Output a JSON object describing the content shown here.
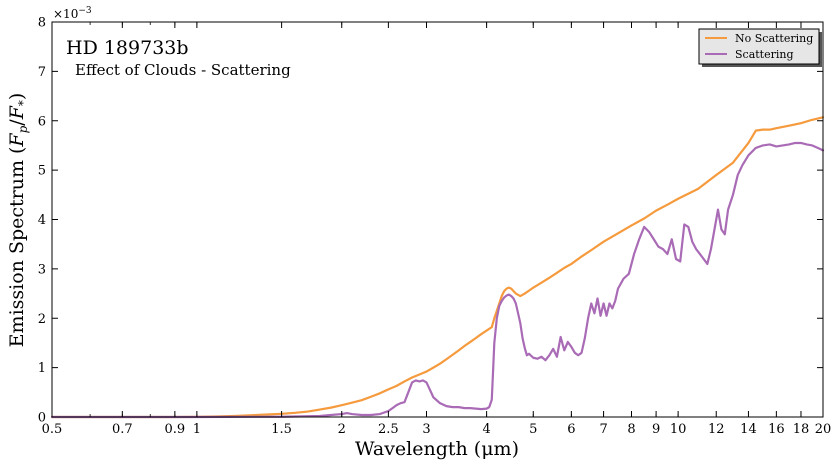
{
  "chart_data": {
    "type": "line",
    "title": "HD 189733b",
    "subtitle": "Effect of Clouds - Scattering",
    "xlabel": "Wavelength (μm)",
    "ylabel": "Emission Spectrum (F_p/F_*)",
    "ylabel_parts": {
      "prefix": "Emission Spectrum (",
      "F": "F",
      "p": "p",
      "slash": "/",
      "F2": "F",
      "star": "*",
      "suffix": ")"
    },
    "x_scale": "log",
    "xlim": [
      0.5,
      20
    ],
    "ylim": [
      0,
      8
    ],
    "y_multiplier": "×10",
    "y_multiplier_exp": "−3",
    "x_tick_values": [
      0.5,
      0.7,
      0.9,
      1,
      1.5,
      2,
      2.5,
      3,
      4,
      5,
      6,
      7,
      8,
      9,
      10,
      12,
      14,
      16,
      18,
      20
    ],
    "x_tick_labels": [
      "0.5",
      "0.7",
      "0.9",
      "1",
      "1.5",
      "2",
      "2.5",
      "3",
      "4",
      "5",
      "6",
      "7",
      "8",
      "9",
      "10",
      "12",
      "14",
      "16",
      "18",
      "20"
    ],
    "y_tick_values": [
      0,
      1,
      2,
      3,
      4,
      5,
      6,
      7,
      8
    ],
    "y_tick_labels": [
      "0",
      "1",
      "2",
      "3",
      "4",
      "5",
      "6",
      "7",
      "8"
    ],
    "legend_position": "top-right",
    "grid": false,
    "series": [
      {
        "name": "No Scattering",
        "color": "#f59a3d",
        "x": [
          0.5,
          0.7,
          0.9,
          1.0,
          1.1,
          1.2,
          1.3,
          1.4,
          1.5,
          1.6,
          1.7,
          1.8,
          1.9,
          2.0,
          2.1,
          2.2,
          2.3,
          2.4,
          2.5,
          2.6,
          2.7,
          2.8,
          2.9,
          3.0,
          3.1,
          3.2,
          3.3,
          3.4,
          3.5,
          3.6,
          3.7,
          3.8,
          3.9,
          4.0,
          4.1,
          4.15,
          4.2,
          4.25,
          4.3,
          4.35,
          4.4,
          4.45,
          4.5,
          4.55,
          4.6,
          4.7,
          4.8,
          4.9,
          5.0,
          5.2,
          5.4,
          5.6,
          5.8,
          6.0,
          6.3,
          6.6,
          7.0,
          7.5,
          8.0,
          8.5,
          9.0,
          9.5,
          10.0,
          11.0,
          12.0,
          13.0,
          14.0,
          14.5,
          15.0,
          15.5,
          16.0,
          17.0,
          18.0,
          19.0,
          20.0
        ],
        "y": [
          0.0,
          0.0,
          0.0,
          0.002,
          0.01,
          0.02,
          0.035,
          0.05,
          0.065,
          0.085,
          0.11,
          0.15,
          0.19,
          0.24,
          0.29,
          0.34,
          0.41,
          0.48,
          0.56,
          0.63,
          0.72,
          0.8,
          0.86,
          0.92,
          1.0,
          1.08,
          1.17,
          1.26,
          1.35,
          1.44,
          1.52,
          1.6,
          1.68,
          1.75,
          1.82,
          2.0,
          2.15,
          2.3,
          2.45,
          2.55,
          2.6,
          2.62,
          2.6,
          2.55,
          2.5,
          2.45,
          2.5,
          2.56,
          2.62,
          2.72,
          2.82,
          2.92,
          3.02,
          3.1,
          3.25,
          3.38,
          3.55,
          3.72,
          3.88,
          4.02,
          4.18,
          4.3,
          4.42,
          4.62,
          4.9,
          5.15,
          5.55,
          5.8,
          5.82,
          5.82,
          5.85,
          5.9,
          5.95,
          6.02,
          6.07
        ]
      },
      {
        "name": "Scattering",
        "color": "#a96bb5",
        "x": [
          0.5,
          1.0,
          1.5,
          1.8,
          1.9,
          2.0,
          2.05,
          2.1,
          2.2,
          2.3,
          2.4,
          2.5,
          2.55,
          2.6,
          2.65,
          2.7,
          2.75,
          2.8,
          2.85,
          2.9,
          2.95,
          3.0,
          3.05,
          3.1,
          3.2,
          3.3,
          3.4,
          3.5,
          3.6,
          3.7,
          3.8,
          3.9,
          4.0,
          4.05,
          4.1,
          4.12,
          4.15,
          4.2,
          4.25,
          4.3,
          4.35,
          4.4,
          4.45,
          4.5,
          4.55,
          4.6,
          4.65,
          4.7,
          4.75,
          4.8,
          4.85,
          4.9,
          5.0,
          5.1,
          5.2,
          5.3,
          5.4,
          5.5,
          5.6,
          5.7,
          5.8,
          5.9,
          6.0,
          6.1,
          6.2,
          6.3,
          6.4,
          6.5,
          6.6,
          6.7,
          6.8,
          6.9,
          7.0,
          7.1,
          7.2,
          7.3,
          7.4,
          7.5,
          7.7,
          7.9,
          8.1,
          8.3,
          8.5,
          8.7,
          8.9,
          9.1,
          9.3,
          9.5,
          9.7,
          9.9,
          10.1,
          10.3,
          10.5,
          10.7,
          10.9,
          11.1,
          11.3,
          11.5,
          11.7,
          11.9,
          12.1,
          12.3,
          12.5,
          12.7,
          13.0,
          13.3,
          13.6,
          14.0,
          14.5,
          15.0,
          15.5,
          16.0,
          16.5,
          17.0,
          17.5,
          18.0,
          18.5,
          19.0,
          19.5,
          20.0
        ],
        "y": [
          0.0,
          0.0,
          0.005,
          0.02,
          0.04,
          0.06,
          0.08,
          0.06,
          0.04,
          0.04,
          0.06,
          0.12,
          0.18,
          0.24,
          0.28,
          0.3,
          0.5,
          0.7,
          0.74,
          0.72,
          0.74,
          0.7,
          0.55,
          0.4,
          0.28,
          0.22,
          0.2,
          0.2,
          0.18,
          0.18,
          0.17,
          0.16,
          0.17,
          0.2,
          0.35,
          0.8,
          1.5,
          2.0,
          2.25,
          2.35,
          2.42,
          2.46,
          2.48,
          2.45,
          2.4,
          2.3,
          2.1,
          1.9,
          1.6,
          1.4,
          1.25,
          1.28,
          1.2,
          1.18,
          1.22,
          1.15,
          1.25,
          1.38,
          1.22,
          1.62,
          1.35,
          1.52,
          1.42,
          1.3,
          1.25,
          1.3,
          1.6,
          2.0,
          2.3,
          2.1,
          2.4,
          2.05,
          2.3,
          2.05,
          2.3,
          2.2,
          2.35,
          2.6,
          2.8,
          2.9,
          3.3,
          3.6,
          3.85,
          3.75,
          3.6,
          3.45,
          3.4,
          3.3,
          3.6,
          3.2,
          3.15,
          3.9,
          3.85,
          3.55,
          3.4,
          3.3,
          3.2,
          3.1,
          3.4,
          3.8,
          4.2,
          3.8,
          3.7,
          4.2,
          4.5,
          4.9,
          5.1,
          5.3,
          5.45,
          5.5,
          5.52,
          5.48,
          5.5,
          5.52,
          5.55,
          5.55,
          5.52,
          5.5,
          5.45,
          5.4
        ]
      }
    ]
  }
}
